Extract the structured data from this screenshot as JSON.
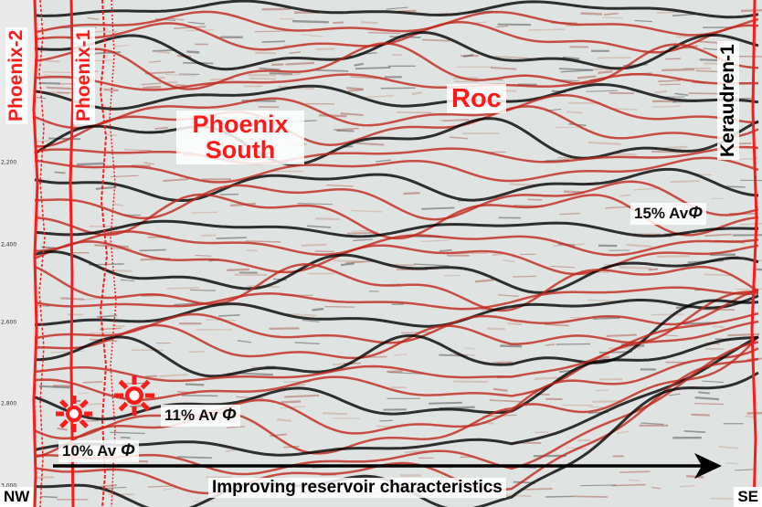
{
  "wells": [
    {
      "name": "Phoenix-2"
    },
    {
      "name": "Phoenix-1"
    },
    {
      "name": "Keraudren-1"
    }
  ],
  "fields": [
    {
      "name": "Phoenix South"
    },
    {
      "name": "Roc"
    }
  ],
  "porosity_labels": [
    {
      "value": "10% Av",
      "symbol": "Φ"
    },
    {
      "value": "11% Av",
      "symbol": "Φ"
    },
    {
      "value": "15% Av",
      "symbol": "Φ"
    }
  ],
  "depth_axis": {
    "ticks": [
      "2,200",
      "2,400",
      "2,600",
      "2,800",
      "3,000"
    ]
  },
  "trend_arrow": {
    "label": "Improving reservoir characteristics"
  },
  "orientation": {
    "left": "NW",
    "right": "SE"
  },
  "colors": {
    "well": "#ff1a1a",
    "text": "#111111",
    "arrow": "#000000",
    "seismic_red": "#c0271d",
    "seismic_black": "#000000"
  },
  "icons": [
    "gas-discovery-icon",
    "gas-discovery-icon"
  ]
}
